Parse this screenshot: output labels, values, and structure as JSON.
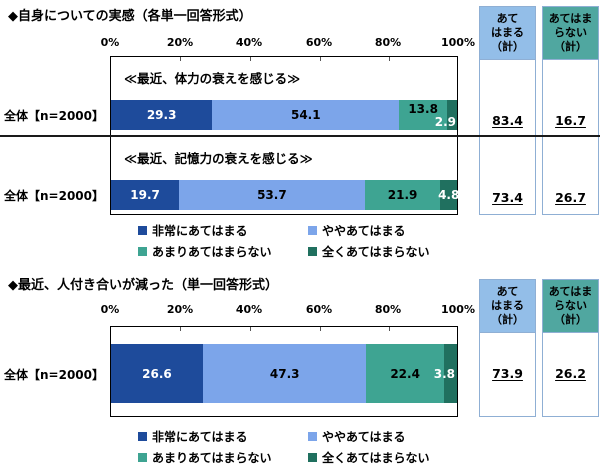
{
  "colors": {
    "seg_strong_yes": "#1E4B9B",
    "seg_somewhat_yes": "#7CA5EA",
    "seg_somewhat_no": "#3EA492",
    "seg_strong_no": "#20705F",
    "header_agree_bg": "#93BEE8",
    "header_disagree_bg": "#50A7A0",
    "table_border": "#8FAFD4"
  },
  "axis_ticks": [
    "0%",
    "20%",
    "40%",
    "60%",
    "80%",
    "100%"
  ],
  "legend": {
    "items": [
      {
        "label": "非常にあてはまる",
        "color": "#1E4B9B"
      },
      {
        "label": "ややあてはまる",
        "color": "#7CA5EA"
      },
      {
        "label": "あまりあてはまらない",
        "color": "#3EA492"
      },
      {
        "label": "全くあてはまらない",
        "color": "#20705F"
      }
    ]
  },
  "summary": {
    "agree_header": "あて\nはまる\n（計）",
    "disagree_header": "あてはま\nらない\n（計）"
  },
  "section1": {
    "title": "◆自身についての実感（各単一回答形式）",
    "subtitles": [
      "≪最近、体力の衰えを感じる≫",
      "≪最近、記憶力の衰えを感じる≫"
    ],
    "rows": [
      {
        "row_label": "全体【n=2000】",
        "agree_total": "83.4",
        "disagree_total": "16.7"
      },
      {
        "row_label": "全体【n=2000】",
        "agree_total": "73.4",
        "disagree_total": "26.7"
      }
    ]
  },
  "section2": {
    "title": "◆最近、人付き合いが減った（単一回答形式）",
    "rows": [
      {
        "row_label": "全体【n=2000】",
        "agree_total": "73.9",
        "disagree_total": "26.2"
      }
    ]
  },
  "chart_data": [
    {
      "type": "bar",
      "subtype": "horizontal-stacked",
      "title": "◆自身についての実感（各単一回答形式）",
      "categories": [
        "≪最近、体力の衰えを感じる≫ 全体【n=2000】",
        "≪最近、記憶力の衰えを感じる≫ 全体【n=2000】"
      ],
      "series": [
        {
          "name": "非常にあてはまる",
          "values": [
            29.3,
            19.7
          ]
        },
        {
          "name": "ややあてはまる",
          "values": [
            54.1,
            53.7
          ]
        },
        {
          "name": "あまりあてはまらない",
          "values": [
            13.8,
            21.9
          ]
        },
        {
          "name": "全くあてはまらない",
          "values": [
            2.9,
            4.8
          ]
        }
      ],
      "totals": [
        {
          "name": "あてはまる（計）",
          "values": [
            83.4,
            73.4
          ]
        },
        {
          "name": "あてはまらない（計）",
          "values": [
            16.7,
            26.7
          ]
        }
      ],
      "xlim": [
        0,
        100
      ],
      "x_ticks": [
        "0%",
        "20%",
        "40%",
        "60%",
        "80%",
        "100%"
      ],
      "unit": "%",
      "legend_position": "bottom",
      "grid": false
    },
    {
      "type": "bar",
      "subtype": "horizontal-stacked",
      "title": "◆最近、人付き合いが減った（単一回答形式）",
      "categories": [
        "全体【n=2000】"
      ],
      "series": [
        {
          "name": "非常にあてはまる",
          "values": [
            26.6
          ]
        },
        {
          "name": "ややあてはまる",
          "values": [
            47.3
          ]
        },
        {
          "name": "あまりあてはまらない",
          "values": [
            22.4
          ]
        },
        {
          "name": "全くあてはまらない",
          "values": [
            3.8
          ]
        }
      ],
      "totals": [
        {
          "name": "あてはまる（計）",
          "values": [
            73.9
          ]
        },
        {
          "name": "あてはまらない（計）",
          "values": [
            26.2
          ]
        }
      ],
      "xlim": [
        0,
        100
      ],
      "x_ticks": [
        "0%",
        "20%",
        "40%",
        "60%",
        "80%",
        "100%"
      ],
      "unit": "%",
      "legend_position": "bottom",
      "grid": false
    }
  ]
}
